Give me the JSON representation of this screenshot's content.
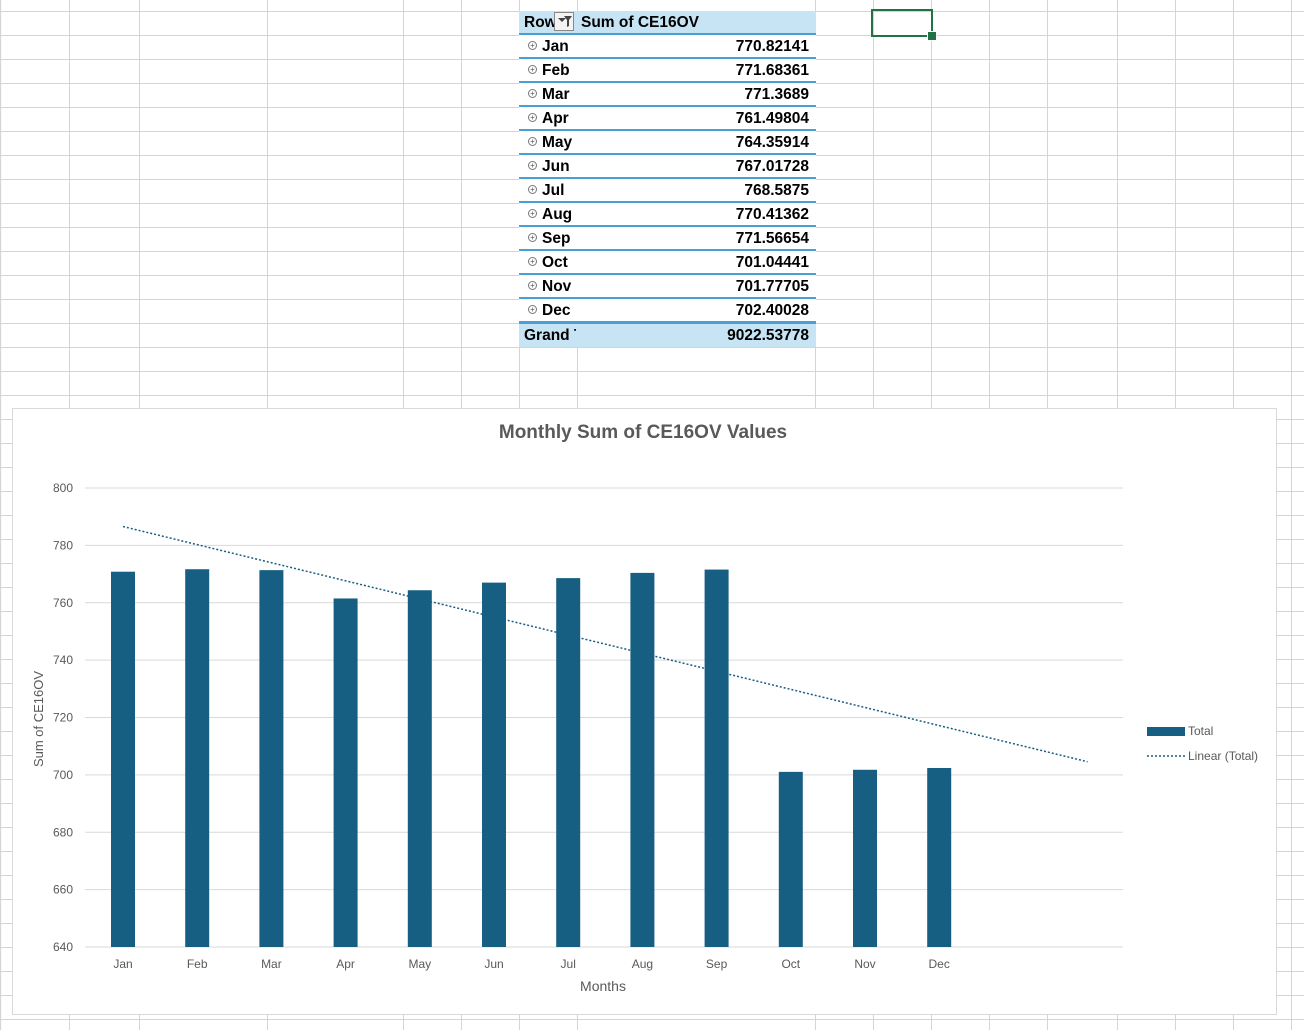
{
  "pivot_table": {
    "header": {
      "row_labels": "Row Labels",
      "value_field": "Sum of CE16OV"
    },
    "rows": [
      {
        "label": "Jan",
        "value": "770.82141"
      },
      {
        "label": "Feb",
        "value": "771.68361"
      },
      {
        "label": "Mar",
        "value": "771.3689"
      },
      {
        "label": "Apr",
        "value": "761.49804"
      },
      {
        "label": "May",
        "value": "764.35914"
      },
      {
        "label": "Jun",
        "value": "767.01728"
      },
      {
        "label": "Jul",
        "value": "768.5875"
      },
      {
        "label": "Aug",
        "value": "770.41362"
      },
      {
        "label": "Sep",
        "value": "771.56654"
      },
      {
        "label": "Oct",
        "value": "701.04441"
      },
      {
        "label": "Nov",
        "value": "701.77705"
      },
      {
        "label": "Dec",
        "value": "702.40028"
      }
    ],
    "grand_total": {
      "label": "Grand Total",
      "value": "9022.53778"
    },
    "expand_icon": "plus-circle-icon",
    "filter_icon": "filter-dropdown-icon"
  },
  "chart_data": {
    "type": "bar",
    "title": "Monthly Sum of CE16OV Values",
    "xlabel": "Months",
    "ylabel": "Sum of CE16OV",
    "categories": [
      "Jan",
      "Feb",
      "Mar",
      "Apr",
      "May",
      "Jun",
      "Jul",
      "Aug",
      "Sep",
      "Oct",
      "Nov",
      "Dec"
    ],
    "series": [
      {
        "name": "Total",
        "values": [
          770.82141,
          771.68361,
          771.3689,
          761.49804,
          764.35914,
          767.01728,
          768.5875,
          770.41362,
          771.56654,
          701.04441,
          701.77705,
          702.40028
        ],
        "color": "#175f82"
      }
    ],
    "trendline": {
      "name": "Linear (Total)",
      "type": "linear",
      "extends_forward_periods": 2,
      "color": "#175f82"
    },
    "ylim": [
      640,
      800
    ],
    "yticks": [
      640,
      660,
      680,
      700,
      720,
      740,
      760,
      780,
      800
    ],
    "grid": true,
    "legend_position": "right"
  }
}
